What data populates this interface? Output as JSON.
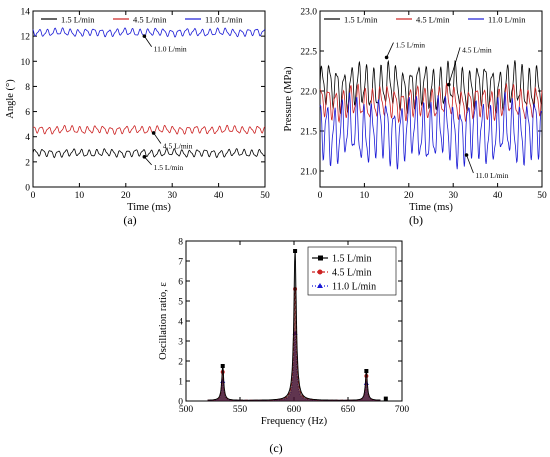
{
  "chart_data": [
    {
      "panel": "(a)",
      "type": "line",
      "xlabel": "Time (ms)",
      "ylabel": "Angle (°)",
      "xlim": [
        0,
        50
      ],
      "ylim": [
        0,
        14
      ],
      "xticks": [
        0,
        10,
        20,
        30,
        40,
        50
      ],
      "yticks": [
        0,
        2,
        4,
        6,
        8,
        10,
        12,
        14
      ],
      "legend_position": "top-right",
      "series": [
        {
          "name": "1.5 L/min",
          "color": "#000000",
          "mean": 2.7,
          "amplitude": 0.3,
          "period_ms": 1.67
        },
        {
          "name": "4.5 L/min",
          "color": "#cc2222",
          "mean": 4.55,
          "amplitude": 0.3,
          "period_ms": 1.67
        },
        {
          "name": "11.0 L/min",
          "color": "#1a1ad6",
          "mean": 12.3,
          "amplitude": 0.3,
          "period_ms": 1.67
        }
      ],
      "annotations": [
        {
          "text": "11.0 L/min",
          "x": 26,
          "y": 11.0
        },
        {
          "text": "4.5 L/min",
          "x": 28,
          "y": 3.3
        },
        {
          "text": "1.5 L/min",
          "x": 26,
          "y": 1.6
        }
      ]
    },
    {
      "panel": "(b)",
      "type": "line",
      "xlabel": "Time (ms)",
      "ylabel": "Pressure (MPa)",
      "xlim": [
        0,
        50
      ],
      "ylim": [
        20.8,
        23.0
      ],
      "xticks": [
        0,
        10,
        20,
        30,
        40,
        50
      ],
      "yticks": [
        21.0,
        21.5,
        22.0,
        22.5,
        23.0
      ],
      "legend_position": "top",
      "series": [
        {
          "name": "1.5 L/min",
          "color": "#000000",
          "mean": 22.05,
          "amplitude": 0.28,
          "period_ms": 1.67
        },
        {
          "name": "4.5 L/min",
          "color": "#cc2222",
          "mean": 21.85,
          "amplitude": 0.2,
          "period_ms": 1.67
        },
        {
          "name": "11.0 L/min",
          "color": "#1a1ad6",
          "mean": 21.5,
          "amplitude": 0.4,
          "period_ms": 1.67
        }
      ],
      "annotations": [
        {
          "text": "1.5 L/min",
          "x": 17,
          "y": 22.58
        },
        {
          "text": "4.5 L/min",
          "x": 32,
          "y": 22.52
        },
        {
          "text": "11.0 L/min",
          "x": 35,
          "y": 20.95
        }
      ]
    },
    {
      "panel": "(c)",
      "type": "line",
      "xlabel": "Frequency (Hz)",
      "ylabel": "Oscillation ratio, ε",
      "xlim": [
        500,
        700
      ],
      "ylim": [
        0,
        8
      ],
      "xticks": [
        500,
        550,
        600,
        650,
        700
      ],
      "yticks": [
        0,
        1,
        2,
        3,
        4,
        5,
        6,
        7,
        8
      ],
      "legend_position": "top-right",
      "series": [
        {
          "name": "1.5 L/min",
          "color": "#000000",
          "peaks": [
            {
              "x": 534,
              "y": 1.75
            },
            {
              "x": 601,
              "y": 7.5
            },
            {
              "x": 667,
              "y": 1.5
            },
            {
              "x": 685,
              "y": 0.12
            }
          ]
        },
        {
          "name": "4.5 L/min",
          "color": "#cc2222",
          "peaks": [
            {
              "x": 534,
              "y": 1.45
            },
            {
              "x": 601,
              "y": 5.6
            },
            {
              "x": 667,
              "y": 1.25
            }
          ]
        },
        {
          "name": "11.0 L/min",
          "color": "#1a1ad6",
          "peaks": [
            {
              "x": 534,
              "y": 1.0
            },
            {
              "x": 601,
              "y": 3.4
            },
            {
              "x": 667,
              "y": 0.9
            }
          ]
        }
      ]
    }
  ],
  "captions": [
    "(a)",
    "(b)",
    "(c)"
  ]
}
